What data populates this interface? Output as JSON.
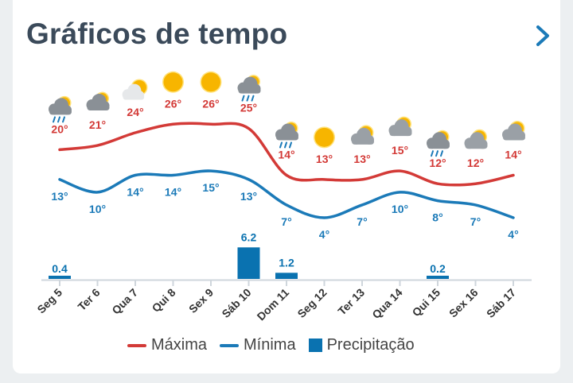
{
  "header": {
    "title": "Gráficos de tempo",
    "chevron_icon": "chevron-right-icon"
  },
  "colors": {
    "max": "#d33a37",
    "min": "#1b7ab8",
    "precip": "#0a72b0",
    "title": "#3b4a5a",
    "axis": "#cfd6dc"
  },
  "chart_data": {
    "type": "line",
    "categories": [
      "Seg 5",
      "Ter 6",
      "Qua 7",
      "Qui 8",
      "Sex 9",
      "Sáb 10",
      "Dom 11",
      "Seg 12",
      "Ter 13",
      "Qua 14",
      "Qui 15",
      "Sex 16",
      "Sáb 17"
    ],
    "icons": [
      "rain-cloud-icon",
      "cloud-icon",
      "partly-cloudy-icon",
      "sun-icon",
      "sun-icon",
      "rain-cloud-icon",
      "rain-cloud-icon",
      "sun-icon",
      "cloud-sun-icon",
      "cloud-sun-icon",
      "rain-cloud-icon",
      "cloud-sun-icon",
      "cloud-sun-icon"
    ],
    "series": [
      {
        "name": "Máxima",
        "values": [
          20,
          21,
          24,
          26,
          26,
          25,
          14,
          13,
          13,
          15,
          12,
          12,
          14
        ],
        "labels": [
          "20°",
          "21°",
          "24°",
          "26°",
          "26°",
          "25°",
          "14°",
          "13°",
          "13°",
          "15°",
          "12°",
          "12°",
          "14°"
        ]
      },
      {
        "name": "Mínima",
        "values": [
          13,
          10,
          14,
          14,
          15,
          13,
          7,
          4,
          7,
          10,
          8,
          7,
          4
        ],
        "labels": [
          "13°",
          "10°",
          "14°",
          "14°",
          "15°",
          "13°",
          "7°",
          "4°",
          "7°",
          "10°",
          "8°",
          "7°",
          "4°"
        ]
      },
      {
        "name": "Precipitação",
        "type": "bar",
        "values": [
          0.4,
          0,
          0,
          0,
          0,
          6.2,
          1.2,
          0,
          0,
          0,
          0.2,
          0,
          0
        ],
        "labels": [
          "0.4",
          "",
          "",
          "",
          "",
          "6.2",
          "1.2",
          "",
          "",
          "",
          "0.2",
          "",
          ""
        ]
      }
    ],
    "legend_position": "bottom"
  }
}
